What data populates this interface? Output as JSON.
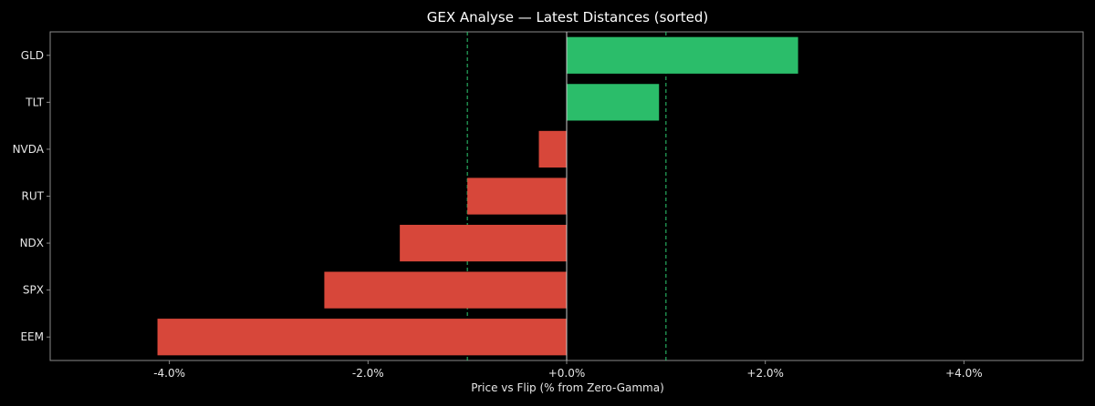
{
  "chart_data": {
    "type": "bar",
    "orientation": "horizontal",
    "title": "GEX Analyse — Latest Distances (sorted)",
    "xlabel": "Price vs Flip (% from Zero-Gamma)",
    "ylabel": "",
    "xlim": [
      -5.2,
      5.2
    ],
    "x_ticks": [
      -4,
      -2,
      0,
      2,
      4
    ],
    "x_tick_labels": [
      "-4.0%",
      "-2.0%",
      "+0.0%",
      "+2.0%",
      "+4.0%"
    ],
    "categories": [
      "GLD",
      "TLT",
      "NVDA",
      "RUT",
      "NDX",
      "SPX",
      "EEM"
    ],
    "values": [
      2.33,
      0.93,
      -0.28,
      -1.0,
      -1.68,
      -2.44,
      -4.12
    ],
    "reference_lines": [
      -1.0,
      0.0,
      1.0
    ],
    "grid": false,
    "colors": {
      "positive": "#2bbd6a",
      "negative": "#d7473a",
      "threshold_line": "#2ecc71",
      "zero_line": "#cccccc",
      "frame": "#8a8a8a",
      "background": "#000000"
    }
  }
}
